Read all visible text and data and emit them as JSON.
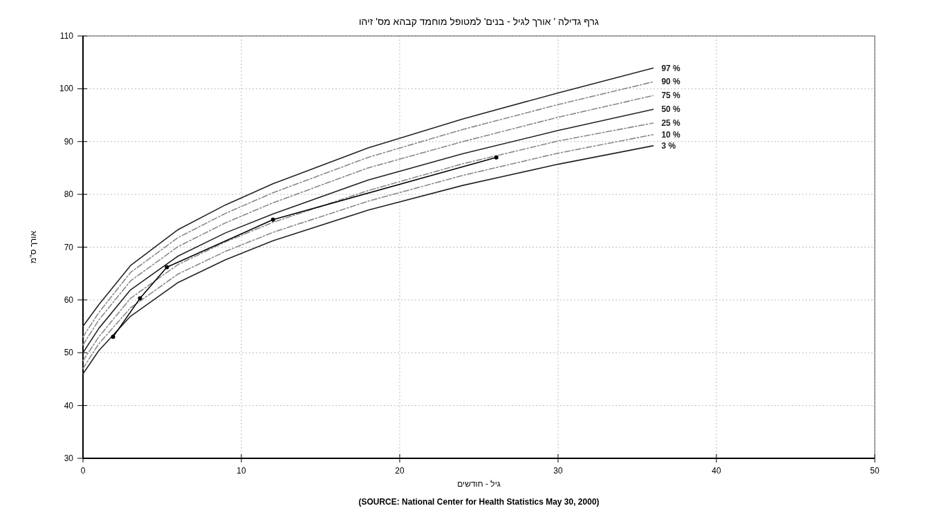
{
  "chart_data": {
    "type": "line",
    "title": "גרף גדילה ' אורך לגיל - בנים' למטופל מוחמד קבהא מס' זיהו",
    "xlabel": "גיל - חודשים",
    "ylabel": "אורך ס\"מ",
    "xlim": [
      0,
      50
    ],
    "ylim": [
      30,
      110
    ],
    "xticks": [
      0,
      10,
      20,
      30,
      40,
      50
    ],
    "yticks": [
      30,
      40,
      50,
      60,
      70,
      80,
      90,
      100,
      110
    ],
    "grid": true,
    "x": [
      0,
      1,
      3,
      6,
      9,
      12,
      18,
      24,
      30,
      36
    ],
    "series": [
      {
        "name": "97 %",
        "color": "#222222",
        "line_style": "solid",
        "marker": "none",
        "values": [
          55,
          59.1,
          66.5,
          73.3,
          78,
          82,
          88.8,
          94.3,
          99.2,
          103.9
        ]
      },
      {
        "name": "90 %",
        "color": "#888888",
        "line_style": "dashed",
        "marker": "none",
        "values": [
          53,
          57.6,
          65.2,
          71.8,
          76.4,
          80.3,
          87,
          92.3,
          97,
          101.3
        ]
      },
      {
        "name": "75 %",
        "color": "#888888",
        "line_style": "dashed",
        "marker": "none",
        "values": [
          51.5,
          56.2,
          63.6,
          70.1,
          74.6,
          78.4,
          85,
          90,
          94.6,
          98.7
        ]
      },
      {
        "name": "50 %",
        "color": "#222222",
        "line_style": "solid",
        "marker": "none",
        "values": [
          50,
          54.6,
          61.9,
          68.3,
          72.7,
          76.3,
          82.7,
          87.7,
          92.1,
          96.1
        ]
      },
      {
        "name": "25 %",
        "color": "#888888",
        "line_style": "dashed",
        "marker": "none",
        "values": [
          48.5,
          53,
          60.3,
          66.7,
          71,
          74.7,
          80.7,
          85.8,
          90.1,
          93.5
        ]
      },
      {
        "name": "10 %",
        "color": "#888888",
        "line_style": "dashed",
        "marker": "none",
        "values": [
          47,
          51.7,
          58.5,
          64.9,
          69.2,
          72.8,
          78.7,
          83.6,
          87.8,
          91.3
        ]
      },
      {
        "name": "3 %",
        "color": "#222222",
        "line_style": "solid",
        "marker": "none",
        "values": [
          46,
          50.4,
          56.9,
          63.3,
          67.6,
          71.2,
          77,
          81.7,
          85.7,
          89.2
        ]
      },
      {
        "color": "#000000",
        "line_style": "solid",
        "marker": "circle",
        "x": [
          1.9,
          3.6,
          5.3,
          12,
          26.1
        ],
        "values": [
          53,
          60.3,
          66.2,
          75.2,
          87
        ]
      }
    ],
    "annotations": [
      "(SOURCE: National Center for Health Statistics May 30, 2000)"
    ]
  }
}
